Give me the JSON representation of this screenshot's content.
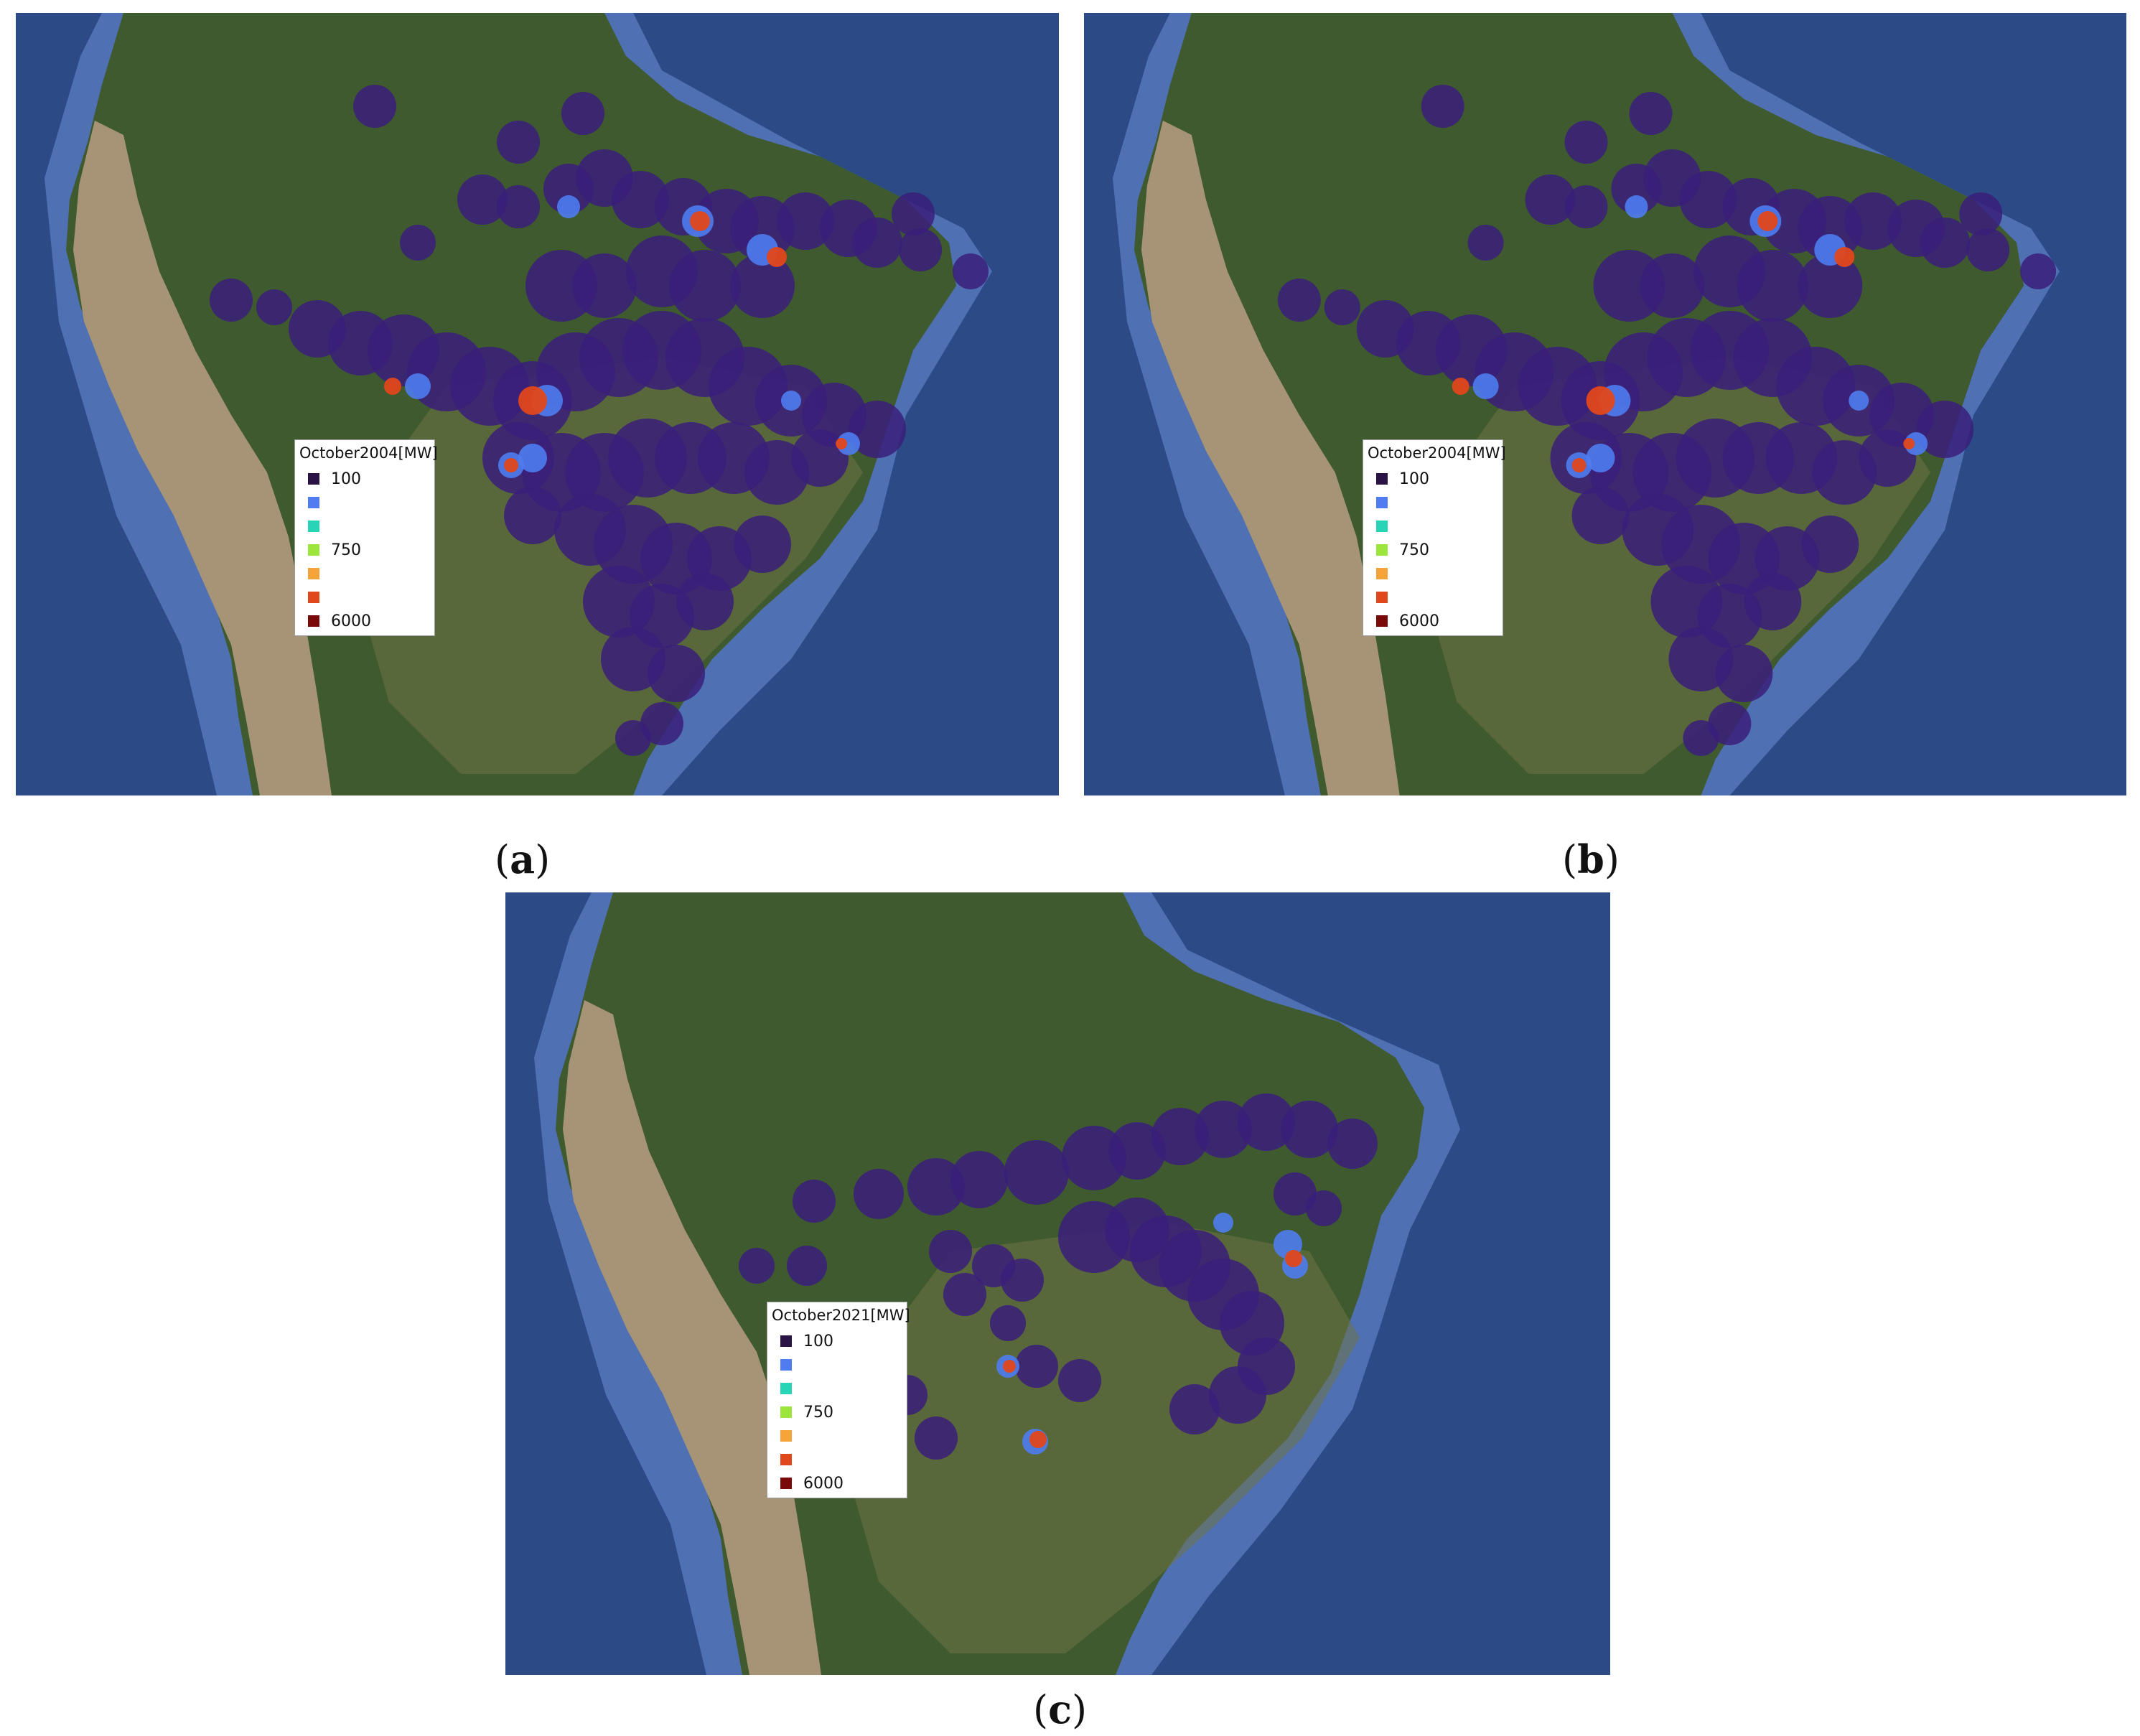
{
  "figure": {
    "panels": [
      {
        "id": "a",
        "caption_letter": "a",
        "legend": {
          "title": "October2004[MW]",
          "entries": [
            {
              "label": "100",
              "color": "#2a1446"
            },
            {
              "label": "",
              "color": "#4f7cf0"
            },
            {
              "label": "",
              "color": "#27d4b6"
            },
            {
              "label": "750",
              "color": "#9be53c"
            },
            {
              "label": "",
              "color": "#f5a43a"
            },
            {
              "label": "",
              "color": "#e0471b"
            },
            {
              "label": "6000",
              "color": "#7a0a0a"
            }
          ]
        }
      },
      {
        "id": "b",
        "caption_letter": "b",
        "legend": {
          "title": "October2004[MW]",
          "entries": [
            {
              "label": "100",
              "color": "#2a1446"
            },
            {
              "label": "",
              "color": "#4f7cf0"
            },
            {
              "label": "",
              "color": "#27d4b6"
            },
            {
              "label": "750",
              "color": "#9be53c"
            },
            {
              "label": "",
              "color": "#f5a43a"
            },
            {
              "label": "",
              "color": "#e0471b"
            },
            {
              "label": "6000",
              "color": "#7a0a0a"
            }
          ]
        }
      },
      {
        "id": "c",
        "caption_letter": "c",
        "legend": {
          "title": "October2021[MW]",
          "entries": [
            {
              "label": "100",
              "color": "#2a1446"
            },
            {
              "label": "",
              "color": "#4f7cf0"
            },
            {
              "label": "",
              "color": "#27d4b6"
            },
            {
              "label": "750",
              "color": "#9be53c"
            },
            {
              "label": "",
              "color": "#f5a43a"
            },
            {
              "label": "",
              "color": "#e0471b"
            },
            {
              "label": "6000",
              "color": "#7a0a0a"
            }
          ]
        }
      }
    ],
    "colors": {
      "ocean": "#2b4a86",
      "ocean_shelf": "#4f70b3",
      "land_forest": "#3f5a2e",
      "land_savanna": "#6e7447",
      "andes": "#a79476",
      "heat_low": "#3a1e7a",
      "heat_mid": "#4f7cf0",
      "heat_high": "#e0471b"
    }
  }
}
